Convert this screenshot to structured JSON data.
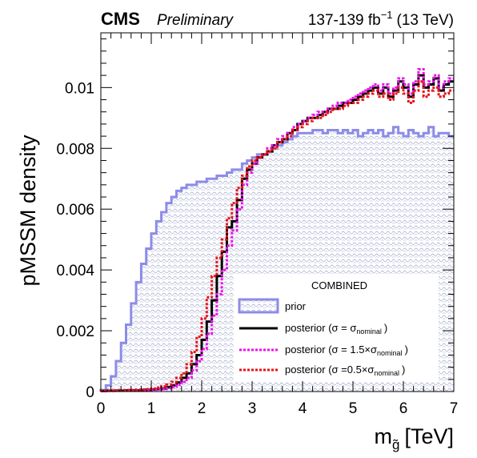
{
  "header": {
    "experiment": "CMS",
    "status": "Preliminary",
    "lumi_value": "137-139 fb",
    "lumi_exponent": "−1",
    "energy": "(13 TeV)"
  },
  "chart_data": {
    "type": "histogram",
    "xlabel_main": "m",
    "xlabel_sub": "g̃",
    "xlabel_unit": "[TeV]",
    "ylabel": "pMSSM density",
    "xlim": [
      0,
      7
    ],
    "ylim": [
      0,
      0.0118
    ],
    "xticks": [
      0,
      1,
      2,
      3,
      4,
      5,
      6,
      7
    ],
    "xtick_labels": [
      "0",
      "1",
      "2",
      "3",
      "4",
      "5",
      "6",
      "7"
    ],
    "yticks": [
      0,
      0.002,
      0.004,
      0.006,
      0.008,
      0.01
    ],
    "ytick_labels": [
      "0",
      "0.002",
      "0.004",
      "0.006",
      "0.008",
      "0.01"
    ],
    "bin_width": 0.1,
    "legend": {
      "title": "COMBINED",
      "placement": "bottom-right",
      "entries": [
        {
          "key": "prior",
          "label": "prior"
        },
        {
          "key": "posterior",
          "label_main": "posterior (σ = σ",
          "label_sub": "nominal",
          "label_end": ")"
        },
        {
          "key": "post15",
          "label_main": "posterior (σ = 1.5×σ",
          "label_sub": "nominal",
          "label_end": ")"
        },
        {
          "key": "post05",
          "label_main": "posterior (σ =0.5×σ",
          "label_sub": "nominal",
          "label_end": ")"
        }
      ]
    },
    "series": [
      {
        "key": "prior",
        "color": "#8c8ce8",
        "fill_pattern": "hatched",
        "values": [
          5e-05,
          0.0002,
          0.0005,
          0.001,
          0.0016,
          0.0022,
          0.0029,
          0.0036,
          0.0042,
          0.0047,
          0.0052,
          0.0056,
          0.0059,
          0.0062,
          0.0064,
          0.0066,
          0.0067,
          0.0068,
          0.0068,
          0.0069,
          0.0069,
          0.007,
          0.007,
          0.0071,
          0.0071,
          0.0072,
          0.0073,
          0.0073,
          0.0075,
          0.0076,
          0.0077,
          0.0078,
          0.0078,
          0.0079,
          0.008,
          0.0081,
          0.0082,
          0.0083,
          0.0084,
          0.0085,
          0.0085,
          0.0085,
          0.0086,
          0.0086,
          0.0085,
          0.0086,
          0.0086,
          0.0085,
          0.0086,
          0.0085,
          0.0086,
          0.0084,
          0.0085,
          0.0086,
          0.0085,
          0.0086,
          0.0084,
          0.0085,
          0.0087,
          0.0085,
          0.0084,
          0.0086,
          0.0085,
          0.0084,
          0.0085,
          0.0087,
          0.0084,
          0.0085,
          0.0085,
          0.0084
        ]
      },
      {
        "key": "posterior",
        "color": "#000000",
        "values": [
          2e-05,
          3e-05,
          3e-05,
          3e-05,
          3e-05,
          4e-05,
          4e-05,
          4e-05,
          5e-05,
          6e-05,
          7e-05,
          8e-05,
          0.0001,
          0.00014,
          0.0002,
          0.0003,
          0.00045,
          0.0006,
          0.0009,
          0.0012,
          0.0017,
          0.0023,
          0.003,
          0.0038,
          0.0046,
          0.0054,
          0.0056,
          0.0063,
          0.007,
          0.0073,
          0.0075,
          0.0077,
          0.0078,
          0.0079,
          0.0081,
          0.0082,
          0.0083,
          0.0085,
          0.0086,
          0.0088,
          0.0089,
          0.009,
          0.009,
          0.0091,
          0.0092,
          0.0093,
          0.0093,
          0.0094,
          0.0095,
          0.0095,
          0.0096,
          0.0097,
          0.0098,
          0.0099,
          0.01,
          0.0098,
          0.01,
          0.0097,
          0.0099,
          0.0102,
          0.01,
          0.0097,
          0.0101,
          0.0104,
          0.01,
          0.0101,
          0.0103,
          0.0099,
          0.0101,
          0.0102
        ]
      },
      {
        "key": "post15",
        "color": "#ee11ee",
        "values": [
          2e-05,
          2e-05,
          2e-05,
          3e-05,
          3e-05,
          3e-05,
          3e-05,
          4e-05,
          4e-05,
          5e-05,
          6e-05,
          7e-05,
          8e-05,
          0.00011,
          0.00015,
          0.00022,
          0.00032,
          0.00045,
          0.0007,
          0.001,
          0.0014,
          0.0019,
          0.0025,
          0.0032,
          0.004,
          0.0048,
          0.0053,
          0.006,
          0.0068,
          0.0072,
          0.0075,
          0.0077,
          0.0078,
          0.008,
          0.0081,
          0.0083,
          0.0084,
          0.0085,
          0.0087,
          0.0088,
          0.0089,
          0.009,
          0.0091,
          0.0092,
          0.0092,
          0.0093,
          0.0094,
          0.0095,
          0.0095,
          0.0096,
          0.0097,
          0.0098,
          0.0099,
          0.01,
          0.0101,
          0.0099,
          0.0101,
          0.0098,
          0.01,
          0.0103,
          0.0101,
          0.0098,
          0.0102,
          0.0106,
          0.0101,
          0.0102,
          0.0104,
          0.01,
          0.0102,
          0.0103
        ]
      },
      {
        "key": "post05",
        "color": "#e8141a",
        "values": [
          2e-05,
          3e-05,
          3e-05,
          4e-05,
          4e-05,
          5e-05,
          5e-05,
          6e-05,
          7e-05,
          8e-05,
          0.0001,
          0.00013,
          0.00017,
          0.00023,
          0.00032,
          0.00045,
          0.0006,
          0.0009,
          0.0013,
          0.0018,
          0.0024,
          0.0031,
          0.0038,
          0.0044,
          0.005,
          0.0057,
          0.0062,
          0.0067,
          0.0071,
          0.0074,
          0.0076,
          0.0077,
          0.0078,
          0.0079,
          0.008,
          0.0082,
          0.0083,
          0.0084,
          0.0086,
          0.0087,
          0.0088,
          0.0089,
          0.009,
          0.009,
          0.0091,
          0.0092,
          0.0093,
          0.0093,
          0.0094,
          0.0095,
          0.0095,
          0.0096,
          0.0097,
          0.0098,
          0.0099,
          0.0097,
          0.0098,
          0.0096,
          0.0098,
          0.01,
          0.0098,
          0.0095,
          0.0099,
          0.0102,
          0.0097,
          0.0099,
          0.01,
          0.0097,
          0.0098,
          0.0099
        ]
      }
    ]
  }
}
